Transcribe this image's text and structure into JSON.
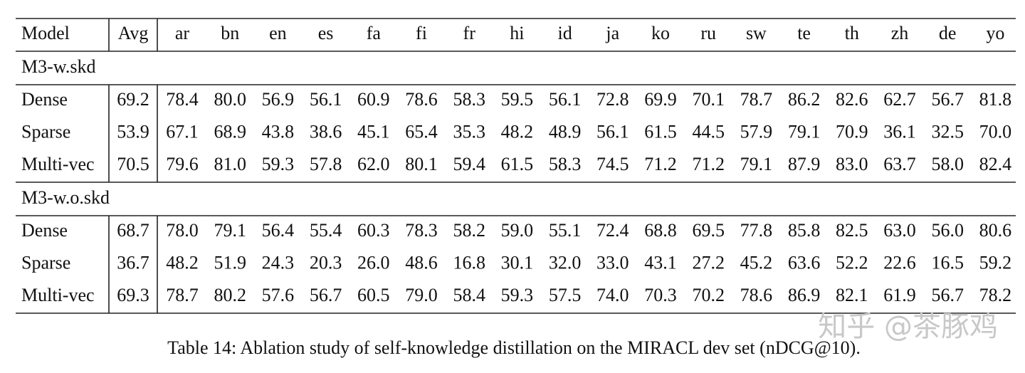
{
  "table": {
    "columns": [
      "Model",
      "Avg",
      "ar",
      "bn",
      "en",
      "es",
      "fa",
      "fi",
      "fr",
      "hi",
      "id",
      "ja",
      "ko",
      "ru",
      "sw",
      "te",
      "th",
      "zh",
      "de",
      "yo"
    ],
    "groups": [
      {
        "label": "M3-w.skd",
        "rows": [
          [
            "Dense",
            "69.2",
            "78.4",
            "80.0",
            "56.9",
            "56.1",
            "60.9",
            "78.6",
            "58.3",
            "59.5",
            "56.1",
            "72.8",
            "69.9",
            "70.1",
            "78.7",
            "86.2",
            "82.6",
            "62.7",
            "56.7",
            "81.8"
          ],
          [
            "Sparse",
            "53.9",
            "67.1",
            "68.9",
            "43.8",
            "38.6",
            "45.1",
            "65.4",
            "35.3",
            "48.2",
            "48.9",
            "56.1",
            "61.5",
            "44.5",
            "57.9",
            "79.1",
            "70.9",
            "36.1",
            "32.5",
            "70.0"
          ],
          [
            "Multi-vec",
            "70.5",
            "79.6",
            "81.0",
            "59.3",
            "57.8",
            "62.0",
            "80.1",
            "59.4",
            "61.5",
            "58.3",
            "74.5",
            "71.2",
            "71.2",
            "79.1",
            "87.9",
            "83.0",
            "63.7",
            "58.0",
            "82.4"
          ]
        ]
      },
      {
        "label": "M3-w.o.skd",
        "rows": [
          [
            "Dense",
            "68.7",
            "78.0",
            "79.1",
            "56.4",
            "55.4",
            "60.3",
            "78.3",
            "58.2",
            "59.0",
            "55.1",
            "72.4",
            "68.8",
            "69.5",
            "77.8",
            "85.8",
            "82.5",
            "63.0",
            "56.0",
            "80.6"
          ],
          [
            "Sparse",
            "36.7",
            "48.2",
            "51.9",
            "24.3",
            "20.3",
            "26.0",
            "48.6",
            "16.8",
            "30.1",
            "32.0",
            "33.0",
            "43.1",
            "27.2",
            "45.2",
            "63.6",
            "52.2",
            "22.6",
            "16.5",
            "59.2"
          ],
          [
            "Multi-vec",
            "69.3",
            "78.7",
            "80.2",
            "57.6",
            "56.7",
            "60.5",
            "79.0",
            "58.4",
            "59.3",
            "57.5",
            "74.0",
            "70.3",
            "70.2",
            "78.6",
            "86.9",
            "82.1",
            "61.9",
            "56.7",
            "78.2"
          ]
        ]
      }
    ]
  },
  "watermark": "知乎 @茶豚鸡",
  "caption": "Table 14: Ablation study of self-knowledge distillation on the MIRACL dev set (nDCG@10)."
}
